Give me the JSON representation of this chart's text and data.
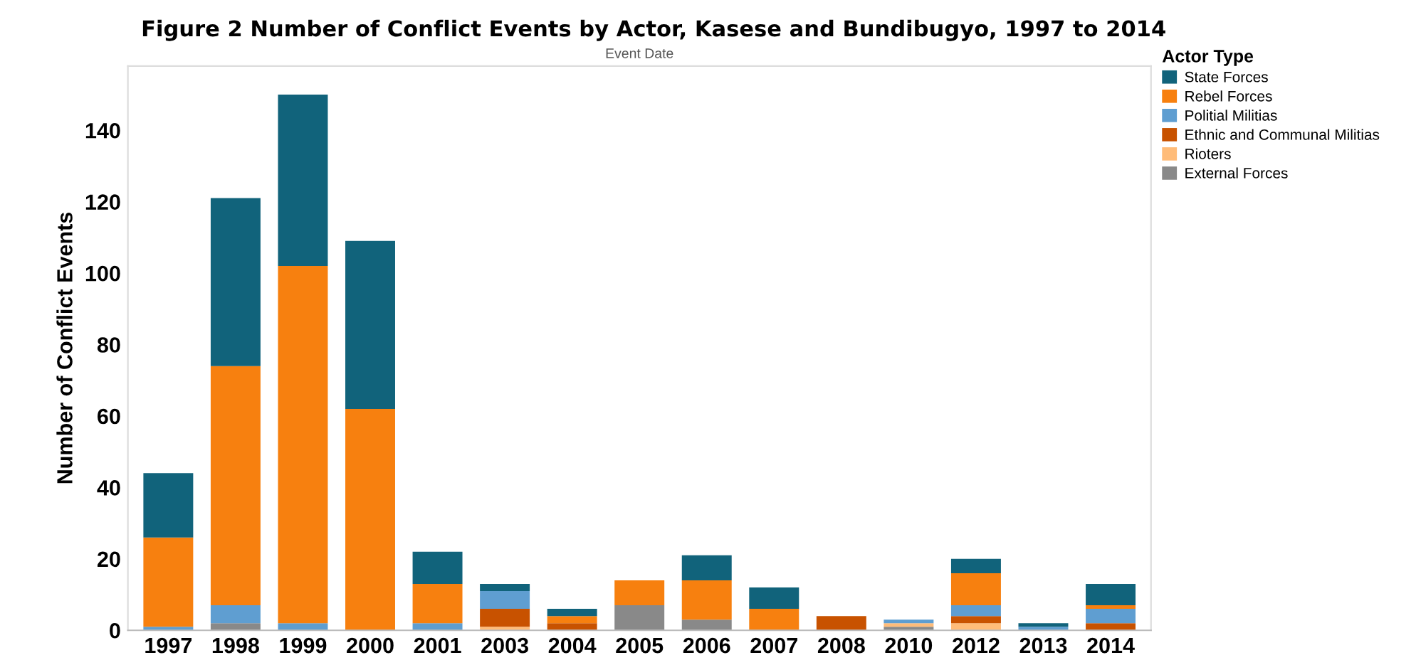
{
  "chart_data": {
    "type": "bar",
    "stacked": true,
    "title": "Figure 2 Number of Conflict Events by Actor, Kasese and Bundibugyo, 1997 to 2014",
    "xlabel": "Event Date",
    "ylabel": "Number of Conflict Events",
    "legend_title": "Actor Type",
    "legend": "right",
    "categories": [
      "1997",
      "1998",
      "1999",
      "2000",
      "2001",
      "2003",
      "2004",
      "2005",
      "2006",
      "2007",
      "2008",
      "2010",
      "2012",
      "2013",
      "2014"
    ],
    "series": [
      {
        "name": "External Forces",
        "color": "#898989",
        "values": [
          null,
          2,
          null,
          null,
          null,
          null,
          null,
          7,
          3,
          null,
          null,
          1,
          null,
          null,
          null
        ]
      },
      {
        "name": "Rioters",
        "color": "#ffbc79",
        "values": [
          null,
          null,
          null,
          null,
          null,
          1,
          null,
          null,
          null,
          null,
          null,
          1,
          2,
          null,
          null
        ]
      },
      {
        "name": "Ethnic and Communal Militias",
        "color": "#c85200",
        "values": [
          null,
          null,
          null,
          null,
          null,
          5,
          2,
          null,
          null,
          null,
          4,
          null,
          2,
          null,
          2
        ]
      },
      {
        "name": "Politial Militias",
        "color": "#5f9ed1",
        "values": [
          1,
          5,
          2,
          null,
          2,
          5,
          null,
          null,
          null,
          null,
          null,
          1,
          3,
          1,
          4
        ]
      },
      {
        "name": "Rebel Forces",
        "color": "#f7800f",
        "values": [
          25,
          67,
          100,
          62,
          11,
          null,
          2,
          7,
          11,
          6,
          null,
          null,
          9,
          null,
          1
        ]
      },
      {
        "name": "State Forces",
        "color": "#11637b",
        "values": [
          18,
          47,
          48,
          47,
          9,
          2,
          2,
          null,
          7,
          6,
          null,
          null,
          4,
          1,
          6
        ]
      }
    ],
    "ylim": [
      0,
      158
    ],
    "yticks": [
      0,
      20,
      40,
      60,
      80,
      100,
      120,
      140
    ],
    "grid": false
  }
}
